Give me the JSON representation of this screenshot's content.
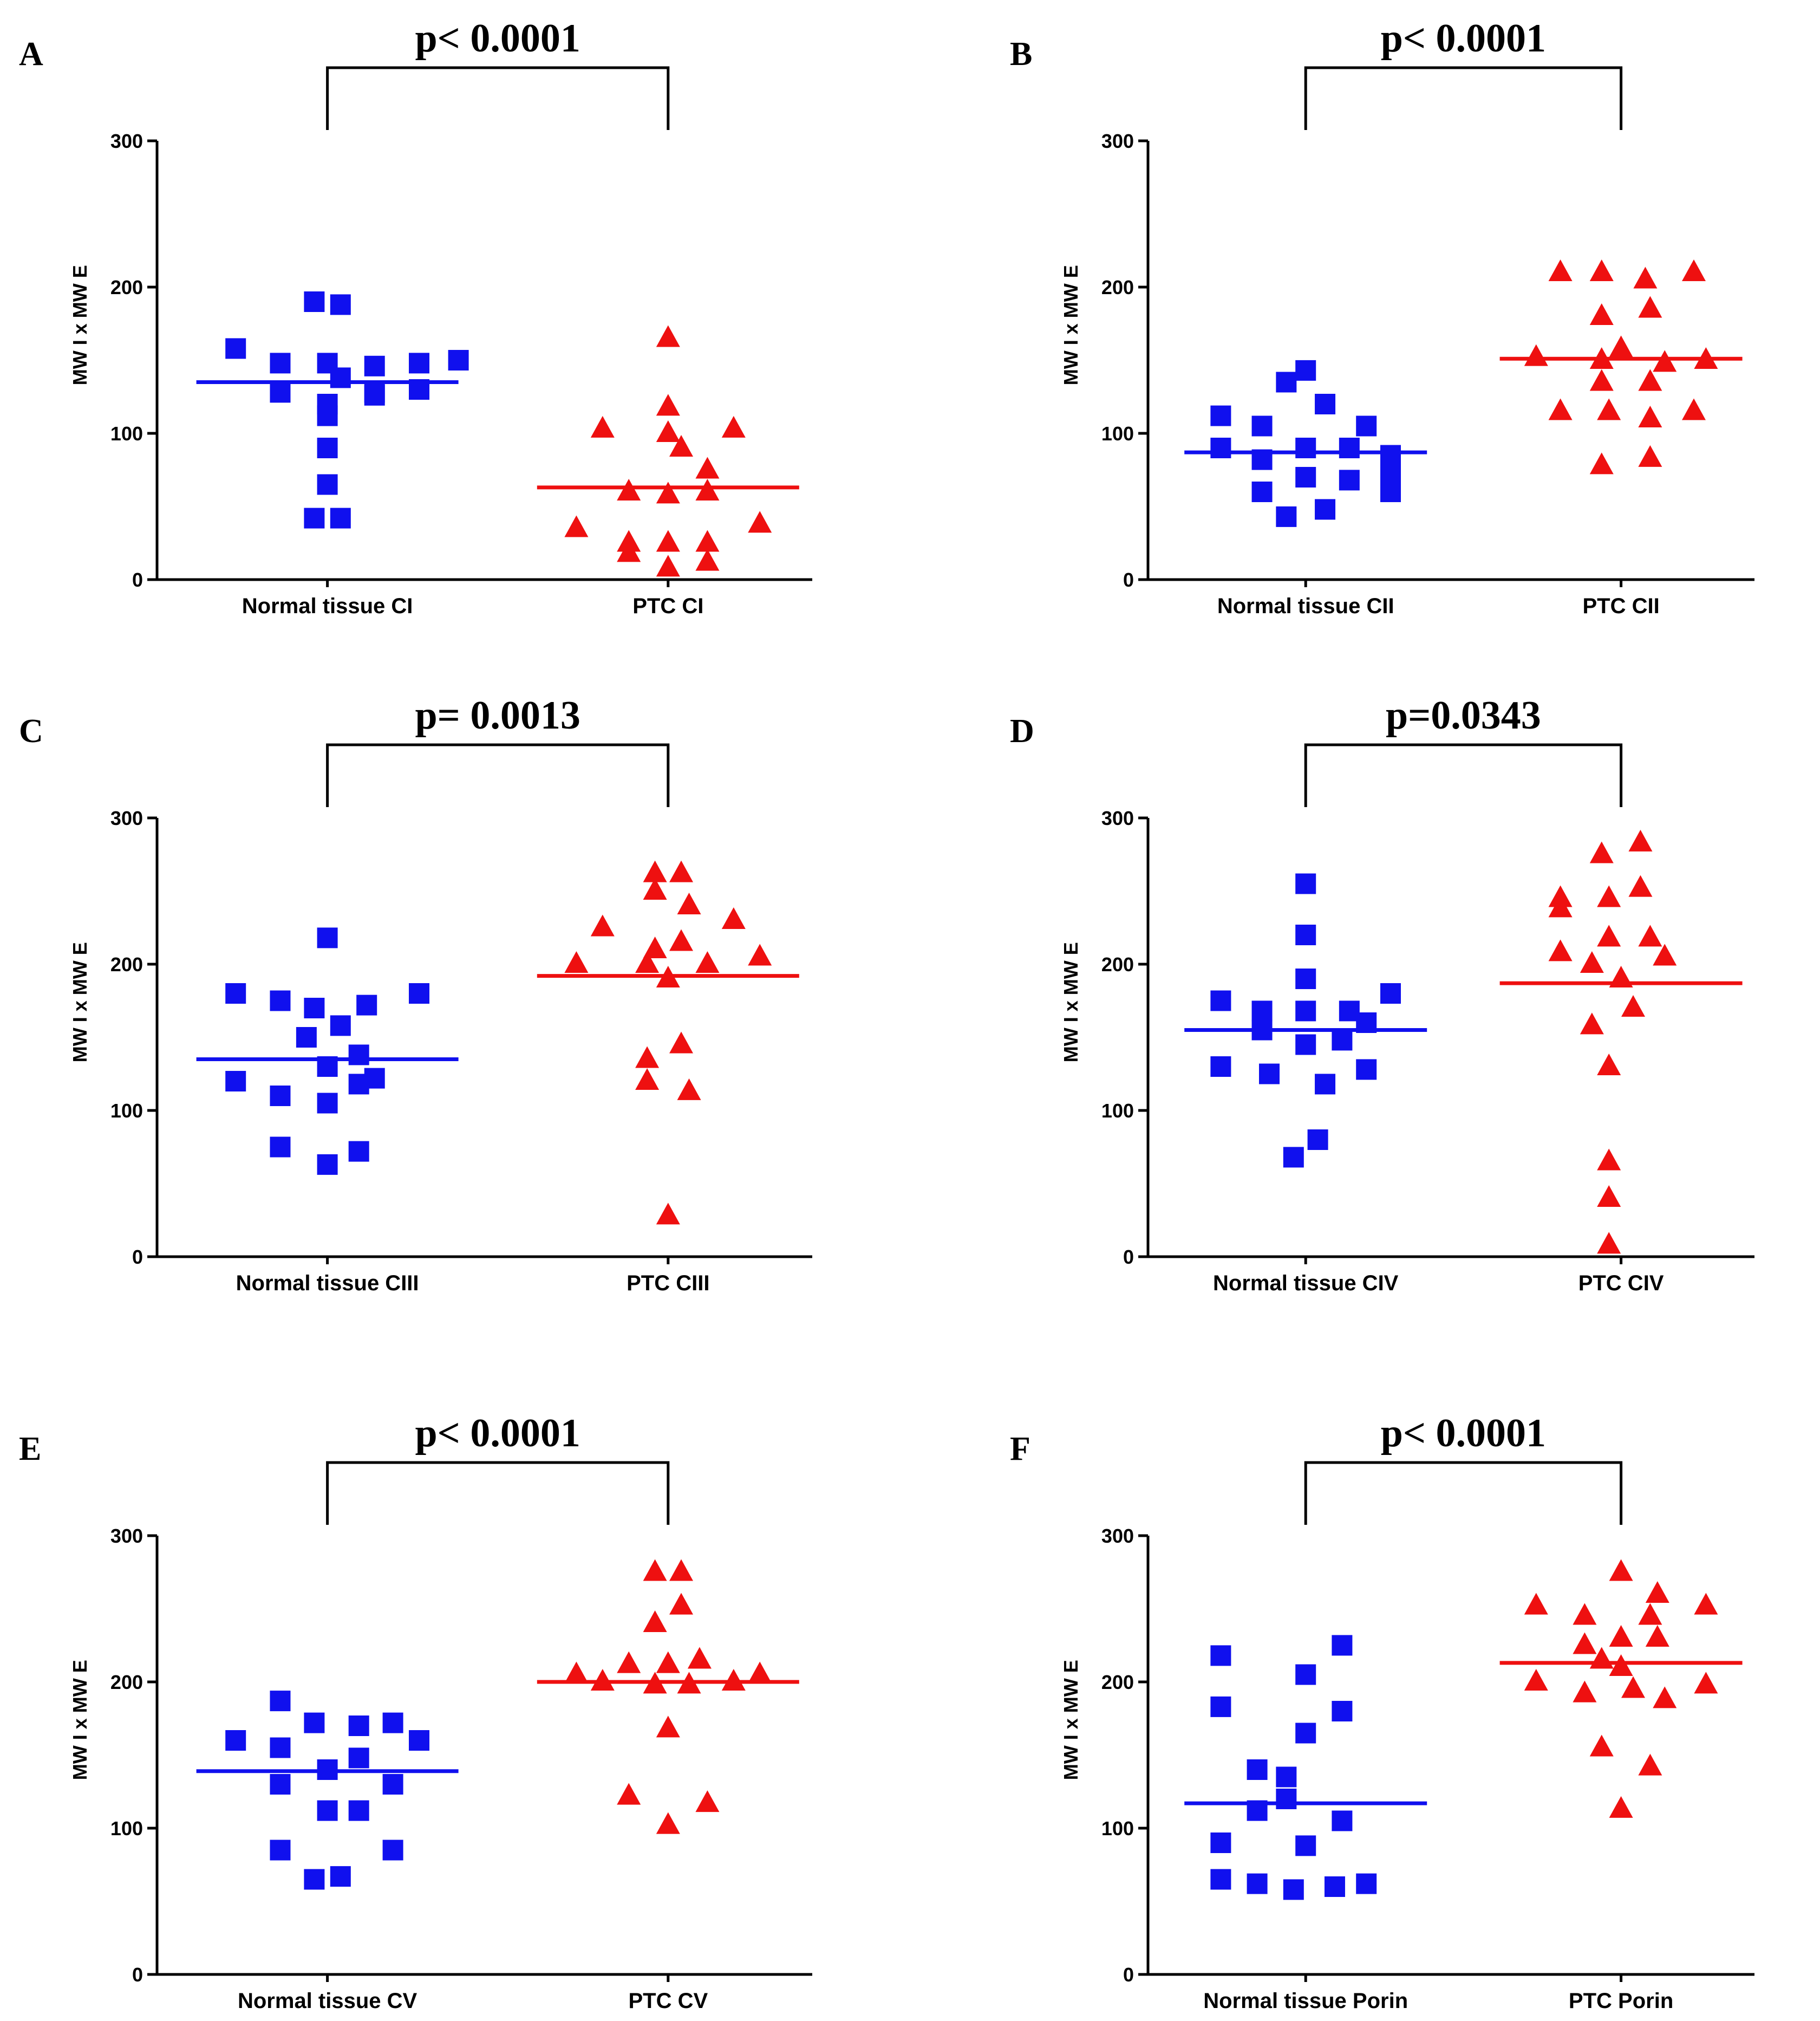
{
  "figure": {
    "colors": {
      "normal": "#1010ee",
      "ptc": "#ee1010",
      "axis": "#000000"
    },
    "marker_shapes": {
      "normal": "square",
      "ptc": "triangle"
    }
  },
  "chart_data": [
    {
      "type": "scatter",
      "panel": "A",
      "pvalue": "p< 0.0001",
      "ylabel": "MW I x MW E",
      "ylim": [
        0,
        300
      ],
      "yticks": [
        "0",
        "100",
        "200",
        "300"
      ],
      "categories": [
        "Normal tissue CI",
        "PTC CI"
      ],
      "series": [
        {
          "name": "Normal tissue CI",
          "marker": "square",
          "mean": 135,
          "points": [
            [
              -0.35,
              158
            ],
            [
              -0.18,
              148
            ],
            [
              0.0,
              148
            ],
            [
              -0.18,
              128
            ],
            [
              0.0,
              120
            ],
            [
              0.0,
              112
            ],
            [
              0.0,
              90
            ],
            [
              0.0,
              65
            ],
            [
              -0.05,
              42
            ],
            [
              0.05,
              42
            ],
            [
              -0.05,
              190
            ],
            [
              0.05,
              188
            ],
            [
              0.05,
              138
            ],
            [
              0.18,
              146
            ],
            [
              0.18,
              126
            ],
            [
              0.18,
              128
            ],
            [
              0.35,
              148
            ],
            [
              0.5,
              150
            ],
            [
              0.35,
              130
            ]
          ]
        },
        {
          "name": "PTC CI",
          "marker": "triangle",
          "mean": 63,
          "points": [
            [
              0.0,
              165
            ],
            [
              0.0,
              118
            ],
            [
              -0.25,
              103
            ],
            [
              0.0,
              100
            ],
            [
              0.25,
              103
            ],
            [
              0.05,
              90
            ],
            [
              0.15,
              75
            ],
            [
              -0.35,
              35
            ],
            [
              -0.15,
              60
            ],
            [
              0.0,
              58
            ],
            [
              0.15,
              60
            ],
            [
              -0.15,
              25
            ],
            [
              0.0,
              25
            ],
            [
              0.15,
              25
            ],
            [
              -0.15,
              18
            ],
            [
              0.35,
              38
            ],
            [
              0.0,
              8
            ],
            [
              0.15,
              12
            ]
          ]
        }
      ]
    },
    {
      "type": "scatter",
      "panel": "B",
      "pvalue": "p< 0.0001",
      "ylabel": "MW I x MW E",
      "ylim": [
        0,
        300
      ],
      "yticks": [
        "0",
        "100",
        "200",
        "300"
      ],
      "categories": [
        "Normal tissue CII",
        "PTC CII"
      ],
      "series": [
        {
          "name": "Normal tissue CII",
          "marker": "square",
          "mean": 87,
          "points": [
            [
              -0.35,
              112
            ],
            [
              -0.08,
              135
            ],
            [
              0.0,
              143
            ],
            [
              -0.18,
              105
            ],
            [
              0.08,
              120
            ],
            [
              0.25,
              105
            ],
            [
              -0.35,
              90
            ],
            [
              -0.18,
              82
            ],
            [
              0.0,
              90
            ],
            [
              0.18,
              90
            ],
            [
              0.35,
              85
            ],
            [
              -0.18,
              60
            ],
            [
              0.0,
              70
            ],
            [
              0.18,
              68
            ],
            [
              0.35,
              60
            ],
            [
              -0.08,
              43
            ],
            [
              0.08,
              48
            ],
            [
              0.35,
              72
            ]
          ]
        },
        {
          "name": "PTC CII",
          "marker": "triangle",
          "mean": 151,
          "points": [
            [
              -0.25,
              210
            ],
            [
              -0.08,
              210
            ],
            [
              0.1,
              205
            ],
            [
              0.3,
              210
            ],
            [
              -0.08,
              180
            ],
            [
              0.12,
              185
            ],
            [
              -0.35,
              152
            ],
            [
              -0.08,
              150
            ],
            [
              0.0,
              158
            ],
            [
              0.18,
              148
            ],
            [
              0.35,
              150
            ],
            [
              -0.08,
              135
            ],
            [
              0.12,
              135
            ],
            [
              -0.25,
              115
            ],
            [
              -0.05,
              115
            ],
            [
              0.12,
              110
            ],
            [
              0.3,
              115
            ],
            [
              -0.08,
              78
            ],
            [
              0.12,
              83
            ]
          ]
        }
      ]
    },
    {
      "type": "scatter",
      "panel": "C",
      "pvalue": "p= 0.0013",
      "ylabel": "MW I x MW E",
      "ylim": [
        0,
        300
      ],
      "yticks": [
        "0",
        "100",
        "200",
        "300"
      ],
      "categories": [
        "Normal tissue CIII",
        "PTC CIII"
      ],
      "series": [
        {
          "name": "Normal tissue CIII",
          "marker": "square",
          "mean": 135,
          "points": [
            [
              0.0,
              218
            ],
            [
              -0.35,
              180
            ],
            [
              -0.18,
              175
            ],
            [
              -0.05,
              170
            ],
            [
              0.15,
              172
            ],
            [
              0.35,
              180
            ],
            [
              -0.08,
              150
            ],
            [
              0.05,
              158
            ],
            [
              0.12,
              138
            ],
            [
              -0.35,
              120
            ],
            [
              -0.18,
              110
            ],
            [
              0.0,
              105
            ],
            [
              0.12,
              118
            ],
            [
              0.18,
              122
            ],
            [
              0.0,
              130
            ],
            [
              -0.18,
              75
            ],
            [
              0.12,
              72
            ],
            [
              0.0,
              63
            ]
          ]
        },
        {
          "name": "PTC CIII",
          "marker": "triangle",
          "mean": 192,
          "points": [
            [
              -0.05,
              262
            ],
            [
              0.05,
              262
            ],
            [
              -0.05,
              250
            ],
            [
              0.08,
              240
            ],
            [
              0.25,
              230
            ],
            [
              -0.25,
              225
            ],
            [
              -0.05,
              210
            ],
            [
              0.05,
              215
            ],
            [
              -0.35,
              200
            ],
            [
              -0.08,
              200
            ],
            [
              0.0,
              190
            ],
            [
              0.15,
              200
            ],
            [
              0.35,
              205
            ],
            [
              0.05,
              145
            ],
            [
              -0.08,
              135
            ],
            [
              -0.08,
              120
            ],
            [
              0.08,
              113
            ],
            [
              0.0,
              28
            ]
          ]
        }
      ]
    },
    {
      "type": "scatter",
      "panel": "D",
      "pvalue": "p=0.0343",
      "ylabel": "MW I x MW E",
      "ylim": [
        0,
        300
      ],
      "yticks": [
        "0",
        "100",
        "200",
        "300"
      ],
      "categories": [
        "Normal tissue CIV",
        "PTC CIV"
      ],
      "series": [
        {
          "name": "Normal tissue CIV",
          "marker": "square",
          "mean": 155,
          "points": [
            [
              0.0,
              255
            ],
            [
              0.0,
              220
            ],
            [
              0.0,
              190
            ],
            [
              -0.35,
              175
            ],
            [
              -0.18,
              168
            ],
            [
              0.0,
              168
            ],
            [
              0.18,
              168
            ],
            [
              0.35,
              180
            ],
            [
              0.25,
              160
            ],
            [
              -0.18,
              155
            ],
            [
              0.0,
              145
            ],
            [
              0.15,
              148
            ],
            [
              -0.35,
              130
            ],
            [
              -0.15,
              125
            ],
            [
              0.08,
              118
            ],
            [
              0.25,
              128
            ],
            [
              0.05,
              80
            ],
            [
              -0.05,
              68
            ]
          ]
        },
        {
          "name": "PTC CIV",
          "marker": "triangle",
          "mean": 187,
          "points": [
            [
              0.08,
              283
            ],
            [
              -0.08,
              275
            ],
            [
              0.08,
              252
            ],
            [
              -0.25,
              245
            ],
            [
              -0.05,
              245
            ],
            [
              -0.25,
              238
            ],
            [
              -0.25,
              208
            ],
            [
              -0.05,
              218
            ],
            [
              0.12,
              218
            ],
            [
              -0.12,
              200
            ],
            [
              0.0,
              190
            ],
            [
              0.18,
              205
            ],
            [
              -0.12,
              158
            ],
            [
              0.05,
              170
            ],
            [
              -0.05,
              130
            ],
            [
              -0.05,
              65
            ],
            [
              -0.05,
              40
            ],
            [
              -0.05,
              8
            ]
          ]
        }
      ]
    },
    {
      "type": "scatter",
      "panel": "E",
      "pvalue": "p< 0.0001",
      "ylabel": "MW I x MW E",
      "ylim": [
        0,
        300
      ],
      "yticks": [
        "0",
        "100",
        "200",
        "300"
      ],
      "categories": [
        "Normal tissue CV",
        "PTC CV"
      ],
      "series": [
        {
          "name": "Normal tissue CV",
          "marker": "square",
          "mean": 139,
          "points": [
            [
              -0.18,
              187
            ],
            [
              -0.05,
              172
            ],
            [
              0.12,
              170
            ],
            [
              0.25,
              172
            ],
            [
              -0.35,
              160
            ],
            [
              -0.18,
              155
            ],
            [
              0.0,
              140
            ],
            [
              0.12,
              148
            ],
            [
              0.35,
              160
            ],
            [
              -0.18,
              130
            ],
            [
              0.0,
              112
            ],
            [
              0.12,
              112
            ],
            [
              0.25,
              130
            ],
            [
              -0.18,
              85
            ],
            [
              0.25,
              85
            ],
            [
              -0.05,
              65
            ],
            [
              0.05,
              67
            ]
          ]
        },
        {
          "name": "PTC CV",
          "marker": "triangle",
          "mean": 200,
          "points": [
            [
              -0.05,
              275
            ],
            [
              0.05,
              275
            ],
            [
              0.05,
              252
            ],
            [
              -0.05,
              240
            ],
            [
              -0.35,
              205
            ],
            [
              -0.15,
              212
            ],
            [
              0.0,
              212
            ],
            [
              0.12,
              215
            ],
            [
              0.35,
              205
            ],
            [
              -0.25,
              200
            ],
            [
              -0.05,
              198
            ],
            [
              0.08,
              198
            ],
            [
              0.25,
              200
            ],
            [
              0.0,
              168
            ],
            [
              -0.15,
              122
            ],
            [
              0.15,
              117
            ],
            [
              0.0,
              102
            ]
          ]
        }
      ]
    },
    {
      "type": "scatter",
      "panel": "F",
      "pvalue": "p< 0.0001",
      "ylabel": "MW I x MW E",
      "ylim": [
        0,
        300
      ],
      "yticks": [
        "0",
        "100",
        "200",
        "300"
      ],
      "categories": [
        "Normal tissue Porin",
        "PTC Porin"
      ],
      "series": [
        {
          "name": "Normal tissue Porin",
          "marker": "square",
          "mean": 117,
          "points": [
            [
              0.15,
              225
            ],
            [
              -0.35,
              218
            ],
            [
              0.0,
              205
            ],
            [
              -0.35,
              183
            ],
            [
              0.15,
              180
            ],
            [
              0.0,
              165
            ],
            [
              -0.2,
              140
            ],
            [
              -0.08,
              135
            ],
            [
              -0.2,
              112
            ],
            [
              -0.08,
              120
            ],
            [
              0.15,
              105
            ],
            [
              -0.35,
              90
            ],
            [
              0.0,
              88
            ],
            [
              -0.35,
              65
            ],
            [
              -0.2,
              62
            ],
            [
              -0.05,
              58
            ],
            [
              0.12,
              60
            ],
            [
              0.25,
              62
            ]
          ]
        },
        {
          "name": "PTC Porin",
          "marker": "triangle",
          "mean": 213,
          "points": [
            [
              0.0,
              275
            ],
            [
              0.15,
              260
            ],
            [
              -0.35,
              252
            ],
            [
              -0.15,
              245
            ],
            [
              0.12,
              245
            ],
            [
              0.35,
              252
            ],
            [
              -0.15,
              225
            ],
            [
              0.0,
              230
            ],
            [
              0.15,
              230
            ],
            [
              -0.08,
              215
            ],
            [
              0.0,
              210
            ],
            [
              -0.35,
              200
            ],
            [
              -0.15,
              192
            ],
            [
              0.05,
              195
            ],
            [
              0.18,
              188
            ],
            [
              0.35,
              198
            ],
            [
              -0.08,
              155
            ],
            [
              0.12,
              142
            ],
            [
              0.0,
              113
            ]
          ]
        }
      ]
    }
  ]
}
